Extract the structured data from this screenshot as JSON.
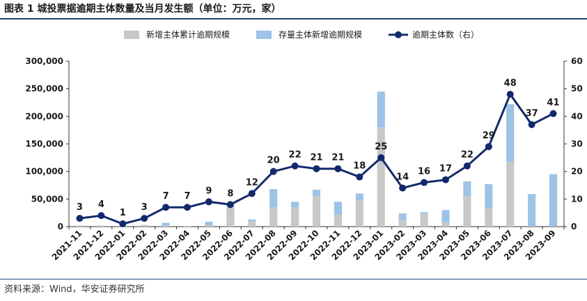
{
  "header": {
    "title": "图表 1  城投票据逾期主体数量及当月发生额（单位：万元，家）"
  },
  "footer": {
    "source": "资料来源：Wind，华安证券研究所"
  },
  "chart_data": {
    "type": "bar",
    "categories": [
      "2021-11",
      "2021-12",
      "2022-01",
      "2022-02",
      "2022-03",
      "2022-04",
      "2022-05",
      "2022-06",
      "2022-07",
      "2022-08",
      "2022-09",
      "2022-10",
      "2022-11",
      "2022-12",
      "2023-01",
      "2023-02",
      "2023-03",
      "2023-04",
      "2023-05",
      "2023-06",
      "2023-07",
      "2023-08",
      "2023-09"
    ],
    "series": [
      {
        "name": "新增主体累计逾期规模",
        "type": "bar",
        "stack": "total",
        "axis": "left",
        "color": "#c8c8c8",
        "values": [
          2000,
          1500,
          500,
          2500,
          1500,
          500,
          2500,
          36000,
          10000,
          35000,
          35000,
          55000,
          22000,
          47000,
          180000,
          12000,
          23000,
          8000,
          55000,
          33000,
          117000,
          0,
          0
        ]
      },
      {
        "name": "存量主体新增逾期规模",
        "type": "bar",
        "stack": "total",
        "axis": "left",
        "color": "#9dc3e6",
        "values": [
          0,
          500,
          500,
          500,
          5500,
          500,
          6500,
          2000,
          3000,
          33000,
          10000,
          12000,
          23000,
          13000,
          65000,
          12000,
          3000,
          22000,
          27000,
          44000,
          105000,
          59000,
          95000
        ]
      },
      {
        "name": "逾期主体数（右）",
        "type": "line",
        "axis": "right",
        "color": "#13296b",
        "values": [
          3,
          4,
          1,
          3,
          7,
          7,
          9,
          8,
          12,
          20,
          22,
          21,
          21,
          18,
          25,
          14,
          16,
          17,
          22,
          29,
          48,
          37,
          41
        ]
      }
    ],
    "y_left": {
      "min": 0,
      "max": 300000,
      "ticks": [
        "0",
        "50,000",
        "100,000",
        "150,000",
        "200,000",
        "250,000",
        "300,000"
      ]
    },
    "y_right": {
      "min": 0,
      "max": 60,
      "ticks": [
        "0",
        "10",
        "20",
        "30",
        "40",
        "50",
        "60"
      ]
    },
    "legend": "top-center",
    "grid": false
  }
}
